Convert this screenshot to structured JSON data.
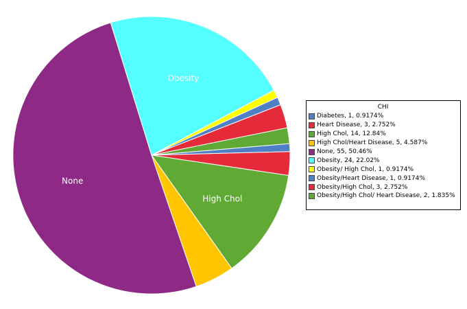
{
  "chart_data": {
    "type": "pie",
    "title": "",
    "legend_title": "CHI",
    "legend_position": "right",
    "slices": [
      {
        "name": "Diabetes",
        "value": 1,
        "percent": "0.9174%",
        "color": "#4f7fc4",
        "label": ""
      },
      {
        "name": "Heart Disease",
        "value": 3,
        "percent": "2.752%",
        "color": "#e52b39",
        "label": ""
      },
      {
        "name": "High Chol",
        "value": 14,
        "percent": "12.84%",
        "color": "#5fa934",
        "label": "High Chol"
      },
      {
        "name": "High Chol/Heart Disease",
        "value": 5,
        "percent": "4.587%",
        "color": "#ffc600",
        "label": ""
      },
      {
        "name": "None",
        "value": 55,
        "percent": "50.46%",
        "color": "#8e2a86",
        "label": "None"
      },
      {
        "name": "Obesity",
        "value": 24,
        "percent": "22.02%",
        "color": "#55ffff",
        "label": "Obesity"
      },
      {
        "name": "Obesity/ High Chol",
        "value": 1,
        "percent": "0.9174%",
        "color": "#ffff00",
        "label": ""
      },
      {
        "name": "Obesity/Heart Disease",
        "value": 1,
        "percent": "0.9174%",
        "color": "#4f7fc4",
        "label": ""
      },
      {
        "name": "Obesity/High Chol",
        "value": 3,
        "percent": "2.752%",
        "color": "#e52b39",
        "label": ""
      },
      {
        "name": "Obesity/High Chol/ Heart Disease",
        "value": 2,
        "percent": "1.835%",
        "color": "#5fa934",
        "label": ""
      }
    ],
    "legend_entries": [
      "Diabetes, 1, 0.9174%",
      "Heart Disease, 3, 2.752%",
      "High Chol, 14, 12.84%",
      "High Chol/Heart Disease, 5, 4.587%",
      "None, 55, 50.46%",
      "Obesity, 24, 22.02%",
      "Obesity/ High Chol, 1, 0.9174%",
      "Obesity/Heart Disease, 1, 0.9174%",
      "Obesity/High Chol, 3, 2.752%",
      "Obesity/High Chol/ Heart Disease, 2, 1.835%"
    ]
  }
}
